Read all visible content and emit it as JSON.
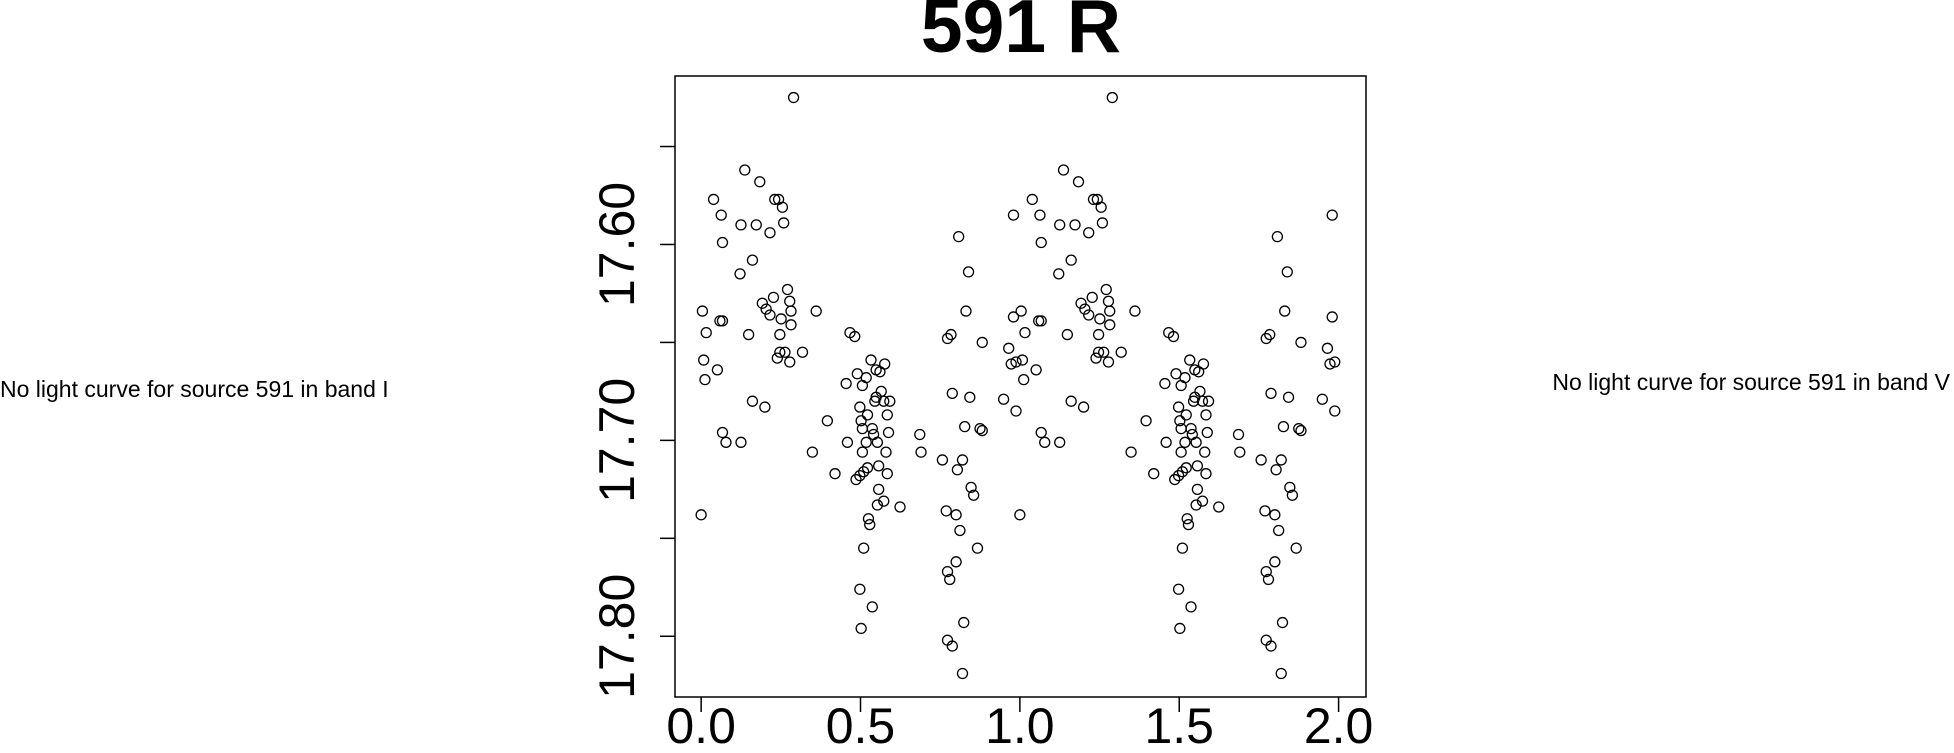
{
  "messages": [
    "No light curve for source 591 in band I",
    "No light curve for source 591 in band V"
  ],
  "chart_data": {
    "type": "scatter",
    "title": "591 R",
    "marker": "open-circle",
    "color": "#000000",
    "xlim": [
      -0.082,
      2.086
    ],
    "ylim": [
      17.514,
      17.831
    ],
    "y_reversed": true,
    "xticks": [
      {
        "value": 0,
        "label": "0.0"
      },
      {
        "value": 0.5,
        "label": "0.5"
      },
      {
        "value": 1,
        "label": "1.0"
      },
      {
        "value": 1.5,
        "label": "1.5"
      },
      {
        "value": 2,
        "label": "2.0"
      }
    ],
    "yticks": [
      {
        "value": 17.6,
        "label": "17.60"
      },
      {
        "value": 17.7,
        "label": "17.70"
      },
      {
        "value": 17.8,
        "label": "17.80"
      }
    ],
    "yminor_ticks": [
      17.55,
      17.65,
      17.75
    ],
    "x": [
      0.0,
      0.004,
      0.016,
      0.008,
      0.012,
      0.039,
      0.051,
      0.063,
      0.059,
      0.067,
      0.067,
      0.067,
      0.078,
      0.125,
      0.122,
      0.125,
      0.149,
      0.161,
      0.161,
      0.137,
      0.173,
      0.184,
      0.192,
      0.204,
      0.2,
      0.216,
      0.216,
      0.227,
      0.231,
      0.243,
      0.251,
      0.255,
      0.239,
      0.247,
      0.247,
      0.259,
      0.263,
      0.271,
      0.278,
      0.278,
      0.282,
      0.282,
      0.29,
      0.318,
      0.349,
      0.361,
      0.396,
      0.42,
      0.455,
      0.459,
      0.467,
      0.482,
      0.486,
      0.49,
      0.498,
      0.498,
      0.502,
      0.506,
      0.506,
      0.506,
      0.502,
      0.498,
      0.51,
      0.51,
      0.518,
      0.518,
      0.522,
      0.522,
      0.525,
      0.529,
      0.533,
      0.537,
      0.537,
      0.541,
      0.545,
      0.549,
      0.549,
      0.553,
      0.553,
      0.557,
      0.557,
      0.561,
      0.565,
      0.573,
      0.573,
      0.576,
      0.58,
      0.584,
      0.584,
      0.588,
      0.592,
      0.624,
      0.686,
      0.69,
      0.757,
      0.769,
      0.773,
      0.773,
      0.773,
      0.78,
      0.784,
      0.788,
      0.788,
      0.8,
      0.8,
      0.804,
      0.808,
      0.812,
      0.82,
      0.82,
      0.824,
      0.827,
      0.831,
      0.839,
      0.843,
      0.847,
      0.855,
      0.867,
      0.875,
      0.882,
      0.882,
      0.949,
      0.965,
      0.973,
      0.98,
      0.98,
      0.988,
      0.988,
      1.0,
      1.004,
      1.016,
      1.008,
      1.012,
      1.039,
      1.051,
      1.063,
      1.059,
      1.067,
      1.067,
      1.067,
      1.078,
      1.125,
      1.122,
      1.125,
      1.149,
      1.161,
      1.161,
      1.137,
      1.173,
      1.184,
      1.192,
      1.204,
      1.2,
      1.216,
      1.216,
      1.227,
      1.231,
      1.243,
      1.251,
      1.255,
      1.239,
      1.247,
      1.247,
      1.259,
      1.263,
      1.271,
      1.278,
      1.278,
      1.282,
      1.282,
      1.29,
      1.318,
      1.349,
      1.361,
      1.396,
      1.42,
      1.455,
      1.459,
      1.467,
      1.482,
      1.486,
      1.49,
      1.498,
      1.498,
      1.502,
      1.506,
      1.506,
      1.506,
      1.502,
      1.498,
      1.51,
      1.51,
      1.518,
      1.518,
      1.522,
      1.522,
      1.525,
      1.529,
      1.533,
      1.537,
      1.537,
      1.541,
      1.545,
      1.549,
      1.549,
      1.553,
      1.553,
      1.557,
      1.557,
      1.561,
      1.565,
      1.573,
      1.573,
      1.576,
      1.58,
      1.584,
      1.584,
      1.588,
      1.592,
      1.624,
      1.686,
      1.69,
      1.757,
      1.769,
      1.773,
      1.773,
      1.773,
      1.78,
      1.784,
      1.788,
      1.788,
      1.8,
      1.8,
      1.804,
      1.808,
      1.812,
      1.82,
      1.82,
      1.824,
      1.827,
      1.831,
      1.839,
      1.843,
      1.847,
      1.855,
      1.867,
      1.875,
      1.882,
      1.882,
      1.949,
      1.965,
      1.973,
      1.98,
      1.98,
      1.988,
      1.988
    ],
    "values": [
      17.738,
      17.634,
      17.645,
      17.659,
      17.669,
      17.577,
      17.664,
      17.585,
      17.639,
      17.639,
      17.599,
      17.696,
      17.701,
      17.701,
      17.615,
      17.59,
      17.646,
      17.608,
      17.68,
      17.562,
      17.59,
      17.568,
      17.63,
      17.633,
      17.683,
      17.594,
      17.636,
      17.627,
      17.577,
      17.577,
      17.638,
      17.581,
      17.658,
      17.655,
      17.646,
      17.589,
      17.655,
      17.623,
      17.629,
      17.66,
      17.641,
      17.634,
      17.525,
      17.655,
      17.706,
      17.634,
      17.69,
      17.717,
      17.671,
      17.701,
      17.645,
      17.647,
      17.72,
      17.666,
      17.718,
      17.683,
      17.69,
      17.672,
      17.694,
      17.706,
      17.796,
      17.776,
      17.716,
      17.755,
      17.668,
      17.701,
      17.714,
      17.687,
      17.74,
      17.743,
      17.659,
      17.785,
      17.694,
      17.697,
      17.68,
      17.664,
      17.678,
      17.701,
      17.733,
      17.713,
      17.725,
      17.665,
      17.675,
      17.731,
      17.68,
      17.661,
      17.706,
      17.717,
      17.687,
      17.696,
      17.68,
      17.734,
      17.697,
      17.706,
      17.71,
      17.736,
      17.767,
      17.802,
      17.648,
      17.771,
      17.646,
      17.805,
      17.676,
      17.738,
      17.762,
      17.715,
      17.596,
      17.746,
      17.71,
      17.819,
      17.793,
      17.693,
      17.634,
      17.614,
      17.678,
      17.724,
      17.728,
      17.755,
      17.694,
      17.695,
      17.65,
      17.679,
      17.653,
      17.661,
      17.637,
      17.585,
      17.66,
      17.685,
      17.738,
      17.634,
      17.645,
      17.659,
      17.669,
      17.577,
      17.664,
      17.585,
      17.639,
      17.639,
      17.599,
      17.696,
      17.701,
      17.701,
      17.615,
      17.59,
      17.646,
      17.608,
      17.68,
      17.562,
      17.59,
      17.568,
      17.63,
      17.633,
      17.683,
      17.594,
      17.636,
      17.627,
      17.577,
      17.577,
      17.638,
      17.581,
      17.658,
      17.655,
      17.646,
      17.589,
      17.655,
      17.623,
      17.629,
      17.66,
      17.641,
      17.634,
      17.525,
      17.655,
      17.706,
      17.634,
      17.69,
      17.717,
      17.671,
      17.701,
      17.645,
      17.647,
      17.72,
      17.666,
      17.718,
      17.683,
      17.69,
      17.672,
      17.694,
      17.706,
      17.796,
      17.776,
      17.716,
      17.755,
      17.668,
      17.701,
      17.714,
      17.687,
      17.74,
      17.743,
      17.659,
      17.785,
      17.694,
      17.697,
      17.68,
      17.664,
      17.678,
      17.701,
      17.733,
      17.713,
      17.725,
      17.665,
      17.675,
      17.731,
      17.68,
      17.661,
      17.706,
      17.717,
      17.687,
      17.696,
      17.68,
      17.734,
      17.697,
      17.706,
      17.71,
      17.736,
      17.767,
      17.802,
      17.648,
      17.771,
      17.646,
      17.805,
      17.676,
      17.738,
      17.762,
      17.715,
      17.596,
      17.746,
      17.71,
      17.819,
      17.793,
      17.693,
      17.634,
      17.614,
      17.678,
      17.724,
      17.728,
      17.755,
      17.694,
      17.695,
      17.65,
      17.679,
      17.653,
      17.661,
      17.637,
      17.585,
      17.66,
      17.685
    ]
  }
}
